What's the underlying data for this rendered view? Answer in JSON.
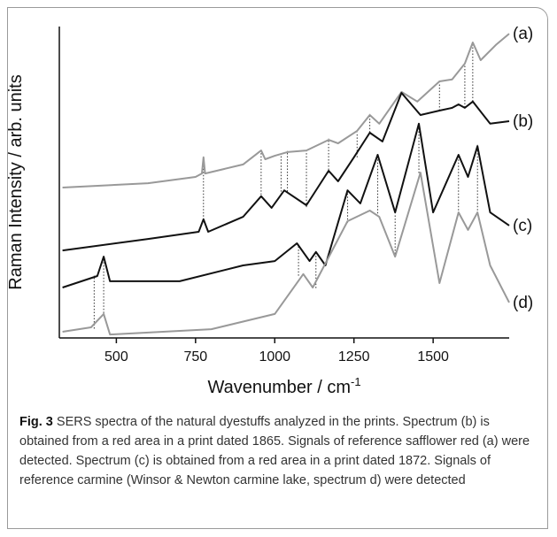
{
  "chart_data": {
    "type": "line",
    "y_label": "Raman Intensity / arb. units",
    "x_label": "Wavenumber / cm",
    "x_label_sup": "-1",
    "xlim": [
      320,
      1740
    ],
    "xticks": [
      500,
      750,
      1000,
      1250,
      1500
    ],
    "ylim": [
      0,
      100
    ],
    "series": [
      {
        "name": "(a)",
        "color": "#999999",
        "x": [
          330,
          600,
          750,
          770,
          775,
          780,
          900,
          957,
          970,
          1000,
          1040,
          1100,
          1170,
          1200,
          1260,
          1300,
          1330,
          1400,
          1450,
          1520,
          1560,
          1600,
          1625,
          1650,
          1700,
          1740
        ],
        "values": [
          48.3,
          49.7,
          51.7,
          52.8,
          58.0,
          52.8,
          55.7,
          60.2,
          57.4,
          58.5,
          59.7,
          60.2,
          63.6,
          62.5,
          66.5,
          71.6,
          68.8,
          79.0,
          75.9,
          82.4,
          83.0,
          88.1,
          94.9,
          89.2,
          94.3,
          97.7
        ]
      },
      {
        "name": "(b)",
        "color": "#111111",
        "x": [
          330,
          600,
          760,
          775,
          790,
          900,
          957,
          990,
          1030,
          1100,
          1170,
          1200,
          1250,
          1300,
          1340,
          1400,
          1460,
          1520,
          1560,
          1580,
          1600,
          1625,
          1680,
          1740
        ],
        "values": [
          28.1,
          31.8,
          34.1,
          38.1,
          34.1,
          38.9,
          45.5,
          41.8,
          47.4,
          42.6,
          53.7,
          50.3,
          58.0,
          65.9,
          63.1,
          78.7,
          71.6,
          73.0,
          73.9,
          75.0,
          73.9,
          75.9,
          68.8,
          69.6
        ]
      },
      {
        "name": "(c)",
        "color": "#111111",
        "x": [
          330,
          440,
          460,
          480,
          700,
          900,
          1000,
          1070,
          1110,
          1130,
          1160,
          1230,
          1270,
          1325,
          1380,
          1455,
          1500,
          1580,
          1610,
          1640,
          1680,
          1740
        ],
        "values": [
          16.2,
          19.9,
          26.1,
          18.2,
          18.2,
          23.3,
          24.7,
          30.4,
          24.7,
          27.6,
          23.3,
          47.4,
          43.2,
          58.8,
          40.3,
          68.8,
          40.3,
          58.8,
          51.7,
          61.6,
          40.3,
          36.1
        ]
      },
      {
        "name": "(d)",
        "color": "#999999",
        "x": [
          330,
          420,
          460,
          480,
          800,
          1000,
          1090,
          1120,
          1230,
          1300,
          1330,
          1380,
          1460,
          1520,
          1580,
          1610,
          1640,
          1680,
          1740
        ],
        "values": [
          2.0,
          3.4,
          7.7,
          1.1,
          2.8,
          7.7,
          20.5,
          16.2,
          37.5,
          40.9,
          38.9,
          26.1,
          53.1,
          17.6,
          40.3,
          34.7,
          40.3,
          23.3,
          11.4
        ]
      }
    ],
    "peak_lines": [
      {
        "x": 430,
        "y": [
          3,
          20
        ]
      },
      {
        "x": 460,
        "y": [
          8,
          26
        ]
      },
      {
        "x": 775,
        "y": [
          38,
          58
        ]
      },
      {
        "x": 957,
        "y": [
          45,
          60
        ]
      },
      {
        "x": 1020,
        "y": [
          46,
          59
        ]
      },
      {
        "x": 1040,
        "y": [
          47,
          60
        ]
      },
      {
        "x": 1100,
        "y": [
          42,
          60
        ]
      },
      {
        "x": 1170,
        "y": [
          53,
          64
        ]
      },
      {
        "x": 1260,
        "y": [
          58,
          66
        ]
      },
      {
        "x": 1300,
        "y": [
          66,
          72
        ]
      },
      {
        "x": 1520,
        "y": [
          73,
          82
        ]
      },
      {
        "x": 1600,
        "y": [
          74,
          88
        ]
      },
      {
        "x": 1625,
        "y": [
          76,
          95
        ]
      },
      {
        "x": 1075,
        "y": [
          20,
          30
        ]
      },
      {
        "x": 1130,
        "y": [
          16,
          28
        ]
      },
      {
        "x": 1230,
        "y": [
          37,
          47
        ]
      },
      {
        "x": 1325,
        "y": [
          40,
          59
        ]
      },
      {
        "x": 1380,
        "y": [
          26,
          40
        ]
      },
      {
        "x": 1455,
        "y": [
          53,
          69
        ]
      },
      {
        "x": 1580,
        "y": [
          40,
          59
        ]
      },
      {
        "x": 1640,
        "y": [
          40,
          62
        ]
      }
    ]
  },
  "caption": {
    "label": "Fig. 3",
    "text": " SERS spectra of the natural dyestuffs analyzed in the prints. Spectrum (b) is obtained from a red area in a print dated 1865. Signals of reference safflower red (a) were detected. Spectrum (c) is obtained from a red area in a print dated 1872. Signals of reference carmine (Winsor & Newton carmine lake, spectrum d) were detected"
  }
}
